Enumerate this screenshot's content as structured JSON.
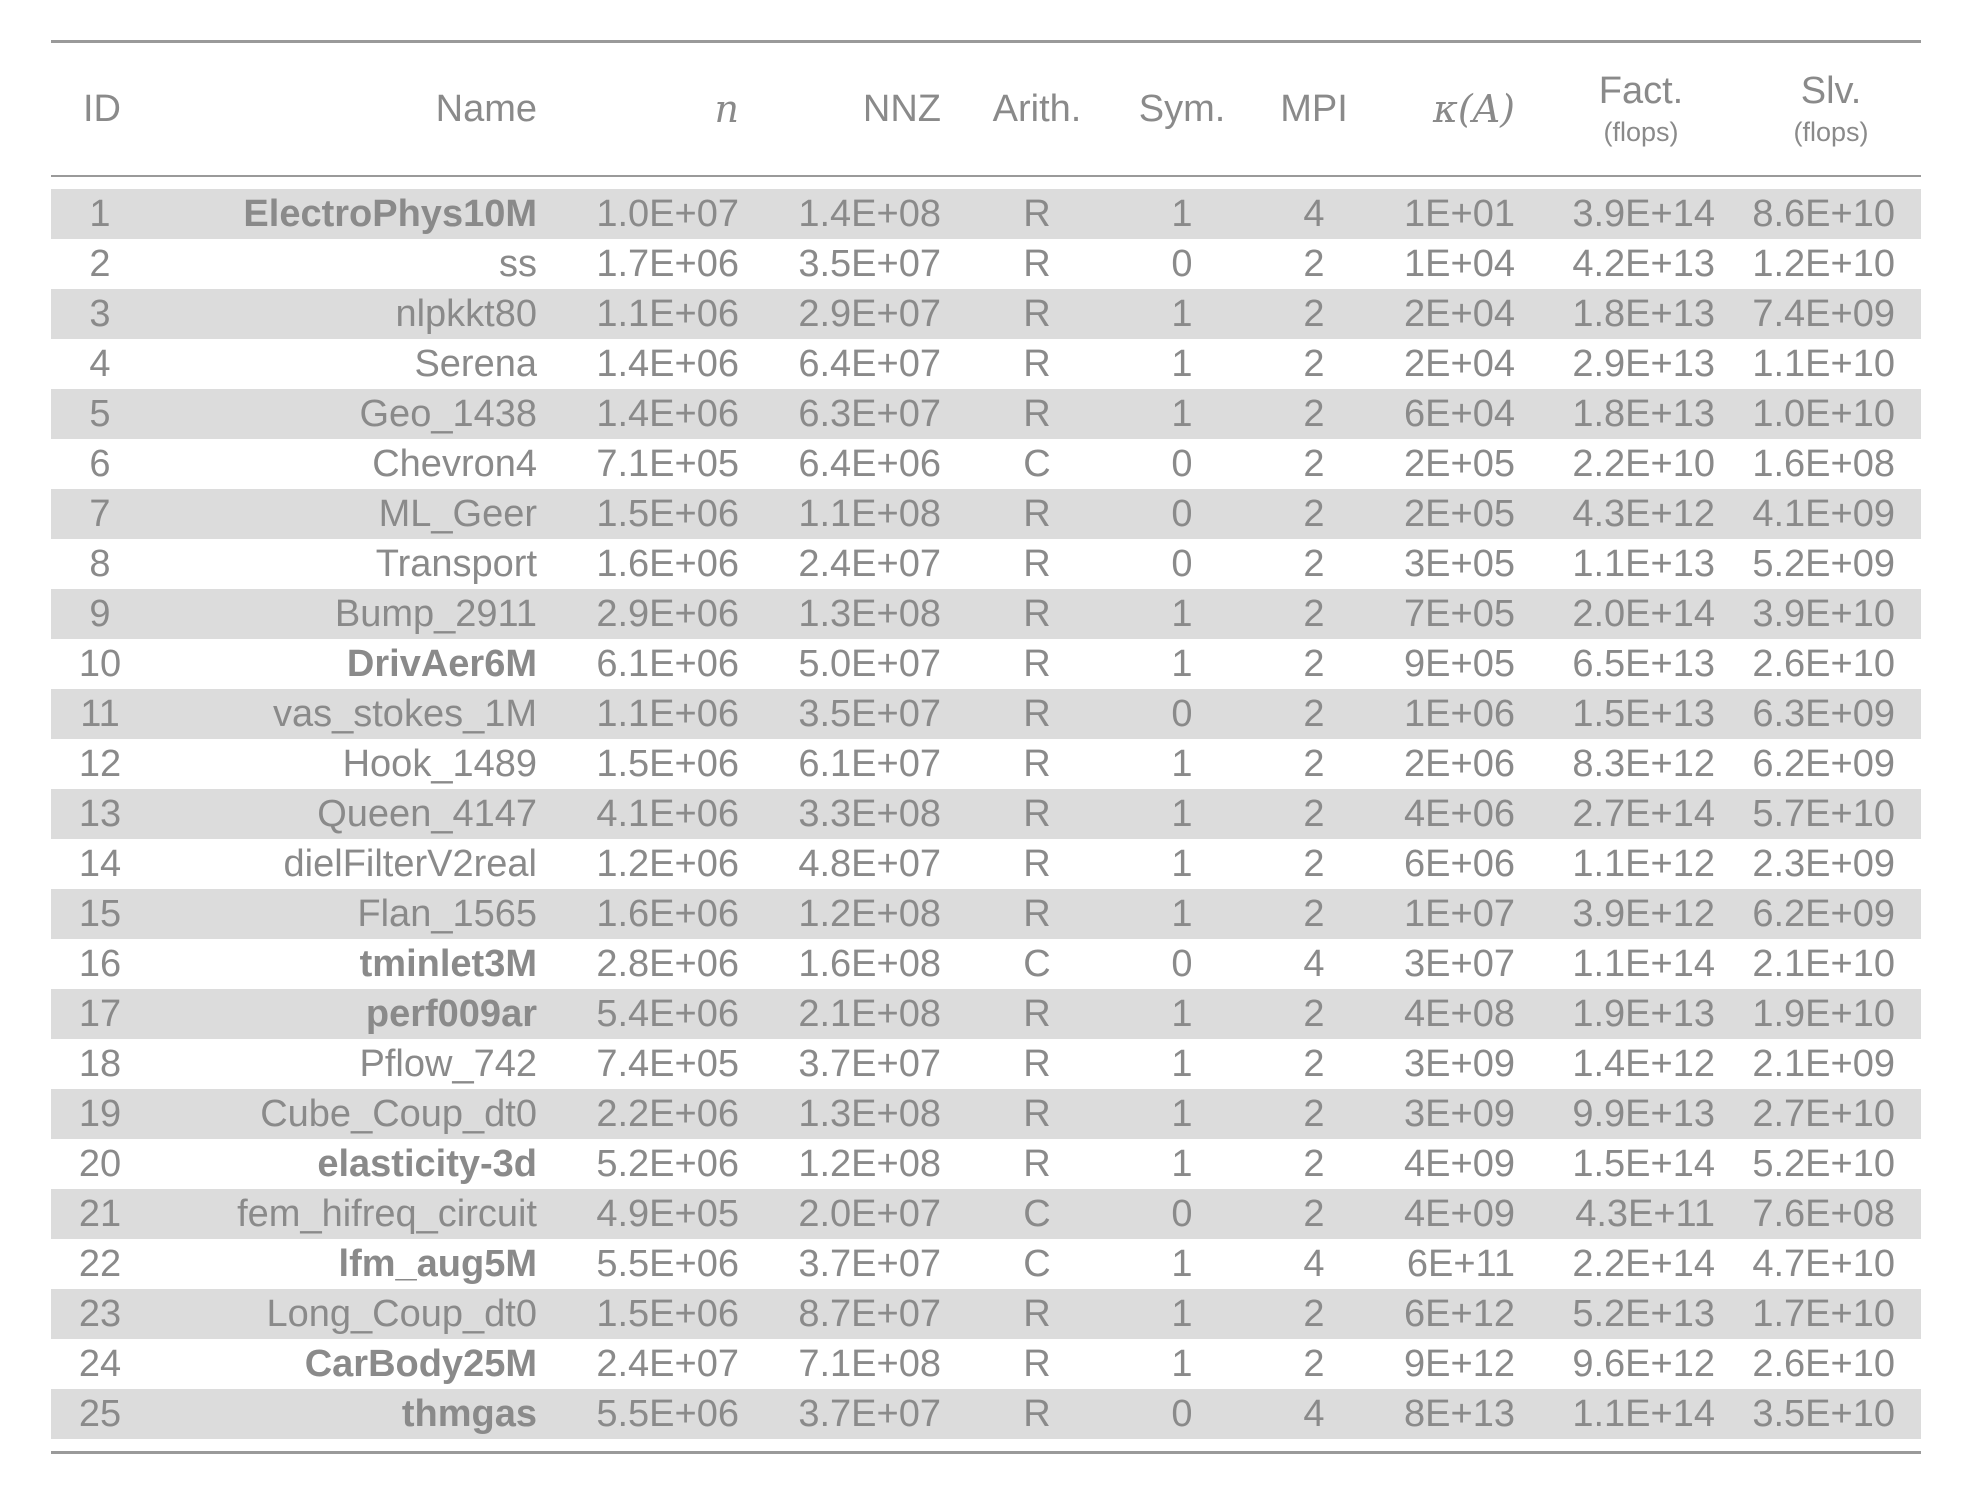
{
  "headers": {
    "id": "ID",
    "name": "Name",
    "n": "n",
    "nnz": "NNZ",
    "arith": "Arith.",
    "sym": "Sym.",
    "mpi": "MPI",
    "kappa": "κ(A)",
    "fact": "Fact.",
    "fact_unit": "(flops)",
    "slv": "Slv.",
    "slv_unit": "(flops)"
  },
  "rows": [
    {
      "id": "1",
      "name": "ElectroPhys10M",
      "bold": true,
      "n": "1.0E+07",
      "nnz": "1.4E+08",
      "arith": "R",
      "sym": "1",
      "mpi": "4",
      "kappa": "1E+01",
      "fact": "3.9E+14",
      "slv": "8.6E+10"
    },
    {
      "id": "2",
      "name": "ss",
      "bold": false,
      "n": "1.7E+06",
      "nnz": "3.5E+07",
      "arith": "R",
      "sym": "0",
      "mpi": "2",
      "kappa": "1E+04",
      "fact": "4.2E+13",
      "slv": "1.2E+10"
    },
    {
      "id": "3",
      "name": "nlpkkt80",
      "bold": false,
      "n": "1.1E+06",
      "nnz": "2.9E+07",
      "arith": "R",
      "sym": "1",
      "mpi": "2",
      "kappa": "2E+04",
      "fact": "1.8E+13",
      "slv": "7.4E+09"
    },
    {
      "id": "4",
      "name": "Serena",
      "bold": false,
      "n": "1.4E+06",
      "nnz": "6.4E+07",
      "arith": "R",
      "sym": "1",
      "mpi": "2",
      "kappa": "2E+04",
      "fact": "2.9E+13",
      "slv": "1.1E+10"
    },
    {
      "id": "5",
      "name": "Geo_1438",
      "bold": false,
      "n": "1.4E+06",
      "nnz": "6.3E+07",
      "arith": "R",
      "sym": "1",
      "mpi": "2",
      "kappa": "6E+04",
      "fact": "1.8E+13",
      "slv": "1.0E+10"
    },
    {
      "id": "6",
      "name": "Chevron4",
      "bold": false,
      "n": "7.1E+05",
      "nnz": "6.4E+06",
      "arith": "C",
      "sym": "0",
      "mpi": "2",
      "kappa": "2E+05",
      "fact": "2.2E+10",
      "slv": "1.6E+08"
    },
    {
      "id": "7",
      "name": "ML_Geer",
      "bold": false,
      "n": "1.5E+06",
      "nnz": "1.1E+08",
      "arith": "R",
      "sym": "0",
      "mpi": "2",
      "kappa": "2E+05",
      "fact": "4.3E+12",
      "slv": "4.1E+09"
    },
    {
      "id": "8",
      "name": "Transport",
      "bold": false,
      "n": "1.6E+06",
      "nnz": "2.4E+07",
      "arith": "R",
      "sym": "0",
      "mpi": "2",
      "kappa": "3E+05",
      "fact": "1.1E+13",
      "slv": "5.2E+09"
    },
    {
      "id": "9",
      "name": "Bump_2911",
      "bold": false,
      "n": "2.9E+06",
      "nnz": "1.3E+08",
      "arith": "R",
      "sym": "1",
      "mpi": "2",
      "kappa": "7E+05",
      "fact": "2.0E+14",
      "slv": "3.9E+10"
    },
    {
      "id": "10",
      "name": "DrivAer6M",
      "bold": true,
      "n": "6.1E+06",
      "nnz": "5.0E+07",
      "arith": "R",
      "sym": "1",
      "mpi": "2",
      "kappa": "9E+05",
      "fact": "6.5E+13",
      "slv": "2.6E+10"
    },
    {
      "id": "11",
      "name": "vas_stokes_1M",
      "bold": false,
      "n": "1.1E+06",
      "nnz": "3.5E+07",
      "arith": "R",
      "sym": "0",
      "mpi": "2",
      "kappa": "1E+06",
      "fact": "1.5E+13",
      "slv": "6.3E+09"
    },
    {
      "id": "12",
      "name": "Hook_1489",
      "bold": false,
      "n": "1.5E+06",
      "nnz": "6.1E+07",
      "arith": "R",
      "sym": "1",
      "mpi": "2",
      "kappa": "2E+06",
      "fact": "8.3E+12",
      "slv": "6.2E+09"
    },
    {
      "id": "13",
      "name": "Queen_4147",
      "bold": false,
      "n": "4.1E+06",
      "nnz": "3.3E+08",
      "arith": "R",
      "sym": "1",
      "mpi": "2",
      "kappa": "4E+06",
      "fact": "2.7E+14",
      "slv": "5.7E+10"
    },
    {
      "id": "14",
      "name": "dielFilterV2real",
      "bold": false,
      "n": "1.2E+06",
      "nnz": "4.8E+07",
      "arith": "R",
      "sym": "1",
      "mpi": "2",
      "kappa": "6E+06",
      "fact": "1.1E+12",
      "slv": "2.3E+09"
    },
    {
      "id": "15",
      "name": "Flan_1565",
      "bold": false,
      "n": "1.6E+06",
      "nnz": "1.2E+08",
      "arith": "R",
      "sym": "1",
      "mpi": "2",
      "kappa": "1E+07",
      "fact": "3.9E+12",
      "slv": "6.2E+09"
    },
    {
      "id": "16",
      "name": "tminlet3M",
      "bold": true,
      "n": "2.8E+06",
      "nnz": "1.6E+08",
      "arith": "C",
      "sym": "0",
      "mpi": "4",
      "kappa": "3E+07",
      "fact": "1.1E+14",
      "slv": "2.1E+10"
    },
    {
      "id": "17",
      "name": "perf009ar",
      "bold": true,
      "n": "5.4E+06",
      "nnz": "2.1E+08",
      "arith": "R",
      "sym": "1",
      "mpi": "2",
      "kappa": "4E+08",
      "fact": "1.9E+13",
      "slv": "1.9E+10"
    },
    {
      "id": "18",
      "name": "Pflow_742",
      "bold": false,
      "n": "7.4E+05",
      "nnz": "3.7E+07",
      "arith": "R",
      "sym": "1",
      "mpi": "2",
      "kappa": "3E+09",
      "fact": "1.4E+12",
      "slv": "2.1E+09"
    },
    {
      "id": "19",
      "name": "Cube_Coup_dt0",
      "bold": false,
      "n": "2.2E+06",
      "nnz": "1.3E+08",
      "arith": "R",
      "sym": "1",
      "mpi": "2",
      "kappa": "3E+09",
      "fact": "9.9E+13",
      "slv": "2.7E+10"
    },
    {
      "id": "20",
      "name": "elasticity-3d",
      "bold": true,
      "n": "5.2E+06",
      "nnz": "1.2E+08",
      "arith": "R",
      "sym": "1",
      "mpi": "2",
      "kappa": "4E+09",
      "fact": "1.5E+14",
      "slv": "5.2E+10"
    },
    {
      "id": "21",
      "name": "fem_hifreq_circuit",
      "bold": false,
      "n": "4.9E+05",
      "nnz": "2.0E+07",
      "arith": "C",
      "sym": "0",
      "mpi": "2",
      "kappa": "4E+09",
      "fact": "4.3E+11",
      "slv": "7.6E+08"
    },
    {
      "id": "22",
      "name": "lfm_aug5M",
      "bold": true,
      "n": "5.5E+06",
      "nnz": "3.7E+07",
      "arith": "C",
      "sym": "1",
      "mpi": "4",
      "kappa": "6E+11",
      "fact": "2.2E+14",
      "slv": "4.7E+10"
    },
    {
      "id": "23",
      "name": "Long_Coup_dt0",
      "bold": false,
      "n": "1.5E+06",
      "nnz": "8.7E+07",
      "arith": "R",
      "sym": "1",
      "mpi": "2",
      "kappa": "6E+12",
      "fact": "5.2E+13",
      "slv": "1.7E+10"
    },
    {
      "id": "24",
      "name": "CarBody25M",
      "bold": true,
      "n": "2.4E+07",
      "nnz": "7.1E+08",
      "arith": "R",
      "sym": "1",
      "mpi": "2",
      "kappa": "9E+12",
      "fact": "9.6E+12",
      "slv": "2.6E+10"
    },
    {
      "id": "25",
      "name": "thmgas",
      "bold": true,
      "n": "5.5E+06",
      "nnz": "3.7E+07",
      "arith": "R",
      "sym": "0",
      "mpi": "4",
      "kappa": "8E+13",
      "fact": "1.1E+14",
      "slv": "3.5E+10"
    }
  ]
}
